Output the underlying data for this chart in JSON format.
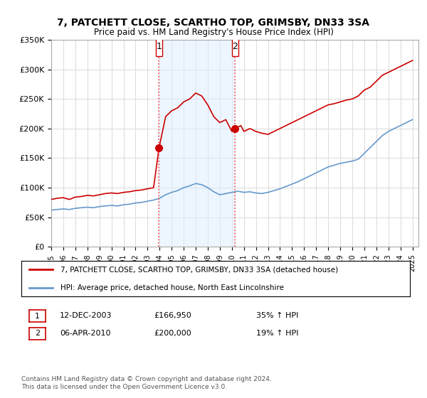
{
  "title": "7, PATCHETT CLOSE, SCARTHO TOP, GRIMSBY, DN33 3SA",
  "subtitle": "Price paid vs. HM Land Registry's House Price Index (HPI)",
  "ylabel_ticks": [
    "£0",
    "£50K",
    "£100K",
    "£150K",
    "£200K",
    "£250K",
    "£300K",
    "£350K"
  ],
  "ylim": [
    0,
    350000
  ],
  "xlim_start": 1995.0,
  "xlim_end": 2025.5,
  "background_color": "#ffffff",
  "plot_bg_color": "#ffffff",
  "grid_color": "#dddddd",
  "shade_color": "#ddeeff",
  "shade_alpha": 0.5,
  "vline_color": "#ff4444",
  "marker1_x": 2003.95,
  "marker1_y": 166950,
  "marker2_x": 2010.27,
  "marker2_y": 200000,
  "marker_color": "#cc0000",
  "marker_size": 7,
  "legend_entry1": "7, PATCHETT CLOSE, SCARTHO TOP, GRIMSBY, DN33 3SA (detached house)",
  "legend_entry2": "HPI: Average price, detached house, North East Lincolnshire",
  "legend_line1_color": "#cc0000",
  "legend_line2_color": "#6699cc",
  "transaction1_date": "12-DEC-2003",
  "transaction1_price": "£166,950",
  "transaction1_hpi": "35% ↑ HPI",
  "transaction2_date": "06-APR-2010",
  "transaction2_price": "£200,000",
  "transaction2_hpi": "19% ↑ HPI",
  "copyright_text": "Contains HM Land Registry data © Crown copyright and database right 2024.\nThis data is licensed under the Open Government Licence v3.0.",
  "red_line_data": {
    "x": [
      1995.0,
      1995.5,
      1996.0,
      1996.5,
      1997.0,
      1997.5,
      1998.0,
      1998.5,
      1999.0,
      1999.5,
      2000.0,
      2000.5,
      2001.0,
      2001.5,
      2002.0,
      2002.5,
      2003.0,
      2003.5,
      2003.95,
      2004.5,
      2005.0,
      2005.5,
      2006.0,
      2006.5,
      2007.0,
      2007.5,
      2008.0,
      2008.5,
      2009.0,
      2009.5,
      2010.0,
      2010.27,
      2010.75,
      2011.0,
      2011.5,
      2012.0,
      2012.5,
      2013.0,
      2013.5,
      2014.0,
      2014.5,
      2015.0,
      2015.5,
      2016.0,
      2016.5,
      2017.0,
      2017.5,
      2018.0,
      2018.5,
      2019.0,
      2019.5,
      2020.0,
      2020.5,
      2021.0,
      2021.5,
      2022.0,
      2022.5,
      2023.0,
      2023.5,
      2024.0,
      2024.5,
      2025.0
    ],
    "y": [
      80000,
      82000,
      83000,
      80000,
      84000,
      85000,
      87000,
      86000,
      88000,
      90000,
      91000,
      90000,
      92000,
      93000,
      95000,
      96000,
      98000,
      100000,
      166950,
      220000,
      230000,
      235000,
      245000,
      250000,
      260000,
      255000,
      240000,
      220000,
      210000,
      215000,
      195000,
      200000,
      205000,
      195000,
      200000,
      195000,
      192000,
      190000,
      195000,
      200000,
      205000,
      210000,
      215000,
      220000,
      225000,
      230000,
      235000,
      240000,
      242000,
      245000,
      248000,
      250000,
      255000,
      265000,
      270000,
      280000,
      290000,
      295000,
      300000,
      305000,
      310000,
      315000
    ]
  },
  "blue_line_data": {
    "x": [
      1995.0,
      1995.5,
      1996.0,
      1996.5,
      1997.0,
      1997.5,
      1998.0,
      1998.5,
      1999.0,
      1999.5,
      2000.0,
      2000.5,
      2001.0,
      2001.5,
      2002.0,
      2002.5,
      2003.0,
      2003.5,
      2004.0,
      2004.5,
      2005.0,
      2005.5,
      2006.0,
      2006.5,
      2007.0,
      2007.5,
      2008.0,
      2008.5,
      2009.0,
      2009.5,
      2010.0,
      2010.5,
      2011.0,
      2011.5,
      2012.0,
      2012.5,
      2013.0,
      2013.5,
      2014.0,
      2014.5,
      2015.0,
      2015.5,
      2016.0,
      2016.5,
      2017.0,
      2017.5,
      2018.0,
      2018.5,
      2019.0,
      2019.5,
      2020.0,
      2020.5,
      2021.0,
      2021.5,
      2022.0,
      2022.5,
      2023.0,
      2023.5,
      2024.0,
      2024.5,
      2025.0
    ],
    "y": [
      62000,
      63000,
      64000,
      63000,
      65000,
      66000,
      67000,
      66000,
      68000,
      69000,
      70000,
      69000,
      71000,
      72000,
      74000,
      75000,
      77000,
      79000,
      82000,
      88000,
      92000,
      95000,
      100000,
      103000,
      107000,
      105000,
      100000,
      93000,
      88000,
      90000,
      92000,
      94000,
      92000,
      93000,
      91000,
      90000,
      92000,
      95000,
      98000,
      102000,
      106000,
      110000,
      115000,
      120000,
      125000,
      130000,
      135000,
      138000,
      141000,
      143000,
      145000,
      148000,
      158000,
      168000,
      178000,
      188000,
      195000,
      200000,
      205000,
      210000,
      215000
    ]
  }
}
